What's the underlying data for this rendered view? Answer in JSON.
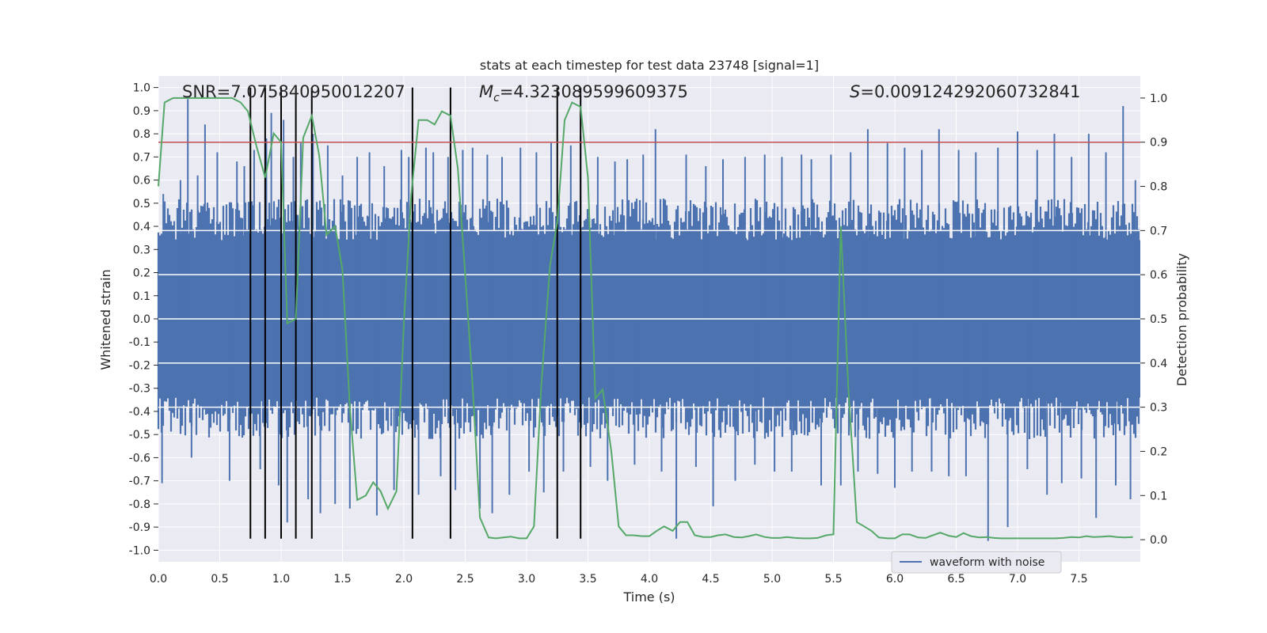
{
  "chart_data": {
    "type": "line",
    "title": "stats at each timestep for test data 23748 [signal=1]",
    "xlabel": "Time (s)",
    "ylabel": "Whitened strain",
    "ylabel_right": "Detection probability",
    "xlim": [
      0.0,
      8.0
    ],
    "ylim": [
      -1.05,
      1.05
    ],
    "ylim_right": [
      -0.05,
      1.05
    ],
    "x_ticks": [
      0.0,
      0.5,
      1.0,
      1.5,
      2.0,
      2.5,
      3.0,
      3.5,
      4.0,
      4.5,
      5.0,
      5.5,
      6.0,
      6.5,
      7.0,
      7.5
    ],
    "x_tick_labels": [
      "0.0",
      "0.5",
      "1.0",
      "1.5",
      "2.0",
      "2.5",
      "3.0",
      "3.5",
      "4.0",
      "4.5",
      "5.0",
      "5.5",
      "6.0",
      "6.5",
      "7.0",
      "7.5"
    ],
    "y_ticks": [
      1.0,
      0.9,
      0.8,
      0.7,
      0.6,
      0.5,
      0.4,
      0.3,
      0.2,
      0.1,
      0.0,
      -0.1,
      -0.2,
      -0.3,
      -0.4,
      -0.5,
      -0.6,
      -0.7,
      -0.8,
      -0.9,
      -1.0
    ],
    "y_tick_labels": [
      "1.0",
      "0.9",
      "0.8",
      "0.7",
      "0.6",
      "0.5",
      "0.4",
      "0.3",
      "0.2",
      "0.1",
      "0.0",
      "-0.1",
      "-0.2",
      "-0.3",
      "-0.4",
      "-0.5",
      "-0.6",
      "-0.7",
      "-0.8",
      "-0.9",
      "-1.0"
    ],
    "y_right_ticks": [
      1.0,
      0.9,
      0.8,
      0.7,
      0.6,
      0.5,
      0.4,
      0.3,
      0.2,
      0.1,
      0.0
    ],
    "y_right_tick_labels": [
      "1.0",
      "0.9",
      "0.8",
      "0.7",
      "0.6",
      "0.5",
      "0.4",
      "0.3",
      "0.2",
      "0.1",
      "0.0"
    ],
    "annotations": {
      "snr": "SNR=7.075840950012207",
      "mc_symbol": "M",
      "mc_sub": "c",
      "mc_value": "=4.323089599609375",
      "s_symbol": "S",
      "s_value": "=0.009124292060732841"
    },
    "threshold_right": 0.9,
    "detection_markers_x": [
      0.75,
      0.87,
      1.0,
      1.12,
      1.25,
      2.07,
      2.38,
      3.25,
      3.44
    ],
    "detection_markers_ymin": -0.95,
    "detection_markers_ymax": 1.0,
    "waveform": {
      "name": "waveform with noise",
      "envelope_lo": 0.34,
      "envelope_hi": 0.52,
      "spikes": [
        [
          0.03,
          -0.71
        ],
        [
          0.04,
          0.54
        ],
        [
          0.18,
          0.6
        ],
        [
          0.24,
          0.95
        ],
        [
          0.27,
          -0.6
        ],
        [
          0.32,
          0.62
        ],
        [
          0.38,
          0.84
        ],
        [
          0.48,
          0.72
        ],
        [
          0.58,
          -0.7
        ],
        [
          0.64,
          0.68
        ],
        [
          0.7,
          0.66
        ],
        [
          0.78,
          0.73
        ],
        [
          0.83,
          -0.65
        ],
        [
          0.88,
          0.78
        ],
        [
          0.92,
          0.89
        ],
        [
          0.98,
          -0.72
        ],
        [
          1.02,
          0.86
        ],
        [
          1.05,
          -0.88
        ],
        [
          1.1,
          0.7
        ],
        [
          1.16,
          0.76
        ],
        [
          1.22,
          -0.78
        ],
        [
          1.26,
          0.8
        ],
        [
          1.32,
          -0.84
        ],
        [
          1.38,
          0.75
        ],
        [
          1.44,
          -0.8
        ],
        [
          1.5,
          0.62
        ],
        [
          1.56,
          -0.82
        ],
        [
          1.62,
          0.7
        ],
        [
          1.72,
          0.72
        ],
        [
          1.78,
          -0.85
        ],
        [
          1.84,
          0.66
        ],
        [
          1.92,
          -0.74
        ],
        [
          1.98,
          0.73
        ],
        [
          2.04,
          0.7
        ],
        [
          2.12,
          -0.76
        ],
        [
          2.18,
          0.74
        ],
        [
          2.24,
          0.72
        ],
        [
          2.3,
          -0.68
        ],
        [
          2.36,
          0.7
        ],
        [
          2.42,
          -0.74
        ],
        [
          2.48,
          0.73
        ],
        [
          2.56,
          0.74
        ],
        [
          2.62,
          -0.82
        ],
        [
          2.68,
          0.71
        ],
        [
          2.72,
          -0.84
        ],
        [
          2.8,
          0.7
        ],
        [
          2.86,
          -0.76
        ],
        [
          2.95,
          0.74
        ],
        [
          3.02,
          -0.66
        ],
        [
          3.08,
          0.72
        ],
        [
          3.14,
          -0.75
        ],
        [
          3.2,
          0.76
        ],
        [
          3.3,
          -0.66
        ],
        [
          3.36,
          0.75
        ],
        [
          3.44,
          0.79
        ],
        [
          3.52,
          -0.64
        ],
        [
          3.58,
          0.7
        ],
        [
          3.66,
          -0.7
        ],
        [
          3.72,
          0.68
        ],
        [
          3.82,
          0.69
        ],
        [
          3.88,
          -0.63
        ],
        [
          3.95,
          0.71
        ],
        [
          4.05,
          0.82
        ],
        [
          4.1,
          -0.66
        ],
        [
          4.22,
          -0.95
        ],
        [
          4.3,
          0.71
        ],
        [
          4.38,
          -0.64
        ],
        [
          4.46,
          0.66
        ],
        [
          4.52,
          -0.81
        ],
        [
          4.6,
          0.69
        ],
        [
          4.7,
          -0.7
        ],
        [
          4.78,
          0.7
        ],
        [
          4.86,
          -0.63
        ],
        [
          4.94,
          0.71
        ],
        [
          5.02,
          -0.66
        ],
        [
          5.08,
          0.7
        ],
        [
          5.16,
          -0.66
        ],
        [
          5.24,
          0.71
        ],
        [
          5.32,
          0.69
        ],
        [
          5.4,
          -0.72
        ],
        [
          5.48,
          0.71
        ],
        [
          5.56,
          -0.72
        ],
        [
          5.64,
          0.72
        ],
        [
          5.7,
          -0.66
        ],
        [
          5.78,
          0.82
        ],
        [
          5.86,
          -0.67
        ],
        [
          5.94,
          0.76
        ],
        [
          6.0,
          -0.73
        ],
        [
          6.08,
          0.74
        ],
        [
          6.14,
          -0.66
        ],
        [
          6.22,
          0.73
        ],
        [
          6.3,
          -0.66
        ],
        [
          6.36,
          0.82
        ],
        [
          6.44,
          -0.68
        ],
        [
          6.52,
          0.73
        ],
        [
          6.58,
          -0.68
        ],
        [
          6.66,
          0.72
        ],
        [
          6.76,
          -0.96
        ],
        [
          6.84,
          0.74
        ],
        [
          6.92,
          -0.9
        ],
        [
          7.0,
          0.81
        ],
        [
          7.08,
          -0.65
        ],
        [
          7.16,
          0.73
        ],
        [
          7.24,
          -0.76
        ],
        [
          7.3,
          0.8
        ],
        [
          7.36,
          -0.71
        ],
        [
          7.44,
          0.7
        ],
        [
          7.52,
          -0.69
        ],
        [
          7.58,
          0.8
        ],
        [
          7.64,
          -0.86
        ],
        [
          7.72,
          0.72
        ],
        [
          7.8,
          -0.72
        ],
        [
          7.86,
          0.92
        ],
        [
          7.92,
          -0.78
        ],
        [
          7.96,
          0.6
        ]
      ]
    },
    "probability": {
      "color": "#55a868",
      "x": [
        0.0,
        0.05,
        0.12,
        0.2,
        0.3,
        0.4,
        0.5,
        0.6,
        0.67,
        0.73,
        0.8,
        0.87,
        0.94,
        1.0,
        1.05,
        1.12,
        1.18,
        1.25,
        1.31,
        1.37,
        1.44,
        1.5,
        1.56,
        1.62,
        1.69,
        1.75,
        1.81,
        1.87,
        1.94,
        2.0,
        2.06,
        2.12,
        2.19,
        2.25,
        2.31,
        2.38,
        2.44,
        2.5,
        2.56,
        2.62,
        2.69,
        2.75,
        2.81,
        2.87,
        2.94,
        3.0,
        3.06,
        3.12,
        3.19,
        3.25,
        3.31,
        3.37,
        3.44,
        3.5,
        3.56,
        3.62,
        3.69,
        3.75,
        3.81,
        3.87,
        3.94,
        4.0,
        4.06,
        4.12,
        4.19,
        4.25,
        4.31,
        4.37,
        4.44,
        4.5,
        4.56,
        4.62,
        4.69,
        4.75,
        4.81,
        4.87,
        4.94,
        5.0,
        5.06,
        5.12,
        5.19,
        5.25,
        5.31,
        5.37,
        5.44,
        5.5,
        5.56,
        5.62,
        5.69,
        5.75,
        5.81,
        5.87,
        5.94,
        6.0,
        6.06,
        6.12,
        6.19,
        6.25,
        6.31,
        6.37,
        6.44,
        6.5,
        6.56,
        6.62,
        6.69,
        6.75,
        6.81,
        6.87,
        6.94,
        7.0,
        7.06,
        7.12,
        7.19,
        7.25,
        7.31,
        7.37,
        7.44,
        7.5,
        7.56,
        7.62,
        7.69,
        7.75,
        7.81,
        7.87,
        7.94
      ],
      "y": [
        0.8,
        0.99,
        1.0,
        1.0,
        1.0,
        1.0,
        1.0,
        1.0,
        0.99,
        0.97,
        0.89,
        0.82,
        0.92,
        0.9,
        0.49,
        0.5,
        0.91,
        0.96,
        0.87,
        0.69,
        0.71,
        0.61,
        0.3,
        0.09,
        0.1,
        0.13,
        0.11,
        0.07,
        0.11,
        0.49,
        0.78,
        0.95,
        0.95,
        0.94,
        0.97,
        0.96,
        0.84,
        0.6,
        0.35,
        0.05,
        0.005,
        0.003,
        0.005,
        0.007,
        0.003,
        0.003,
        0.03,
        0.35,
        0.62,
        0.72,
        0.95,
        0.99,
        0.98,
        0.82,
        0.32,
        0.34,
        0.2,
        0.03,
        0.01,
        0.01,
        0.008,
        0.008,
        0.02,
        0.03,
        0.02,
        0.04,
        0.04,
        0.01,
        0.006,
        0.006,
        0.01,
        0.012,
        0.006,
        0.005,
        0.008,
        0.012,
        0.006,
        0.004,
        0.004,
        0.006,
        0.004,
        0.003,
        0.003,
        0.004,
        0.01,
        0.012,
        0.71,
        0.35,
        0.04,
        0.03,
        0.02,
        0.005,
        0.003,
        0.003,
        0.012,
        0.012,
        0.005,
        0.004,
        0.01,
        0.016,
        0.009,
        0.006,
        0.015,
        0.008,
        0.005,
        0.006,
        0.004,
        0.003,
        0.003,
        0.003,
        0.003,
        0.003,
        0.003,
        0.003,
        0.003,
        0.004,
        0.006,
        0.005,
        0.008,
        0.006,
        0.007,
        0.008,
        0.006,
        0.005,
        0.006
      ]
    },
    "colors": {
      "waveform": "#4c72b0",
      "probability": "#55a868",
      "threshold": "#c44e52",
      "markers": "#000000",
      "background": "#eaeaf2"
    },
    "legend": {
      "label": "waveform with noise",
      "position": "bottom-right"
    }
  }
}
